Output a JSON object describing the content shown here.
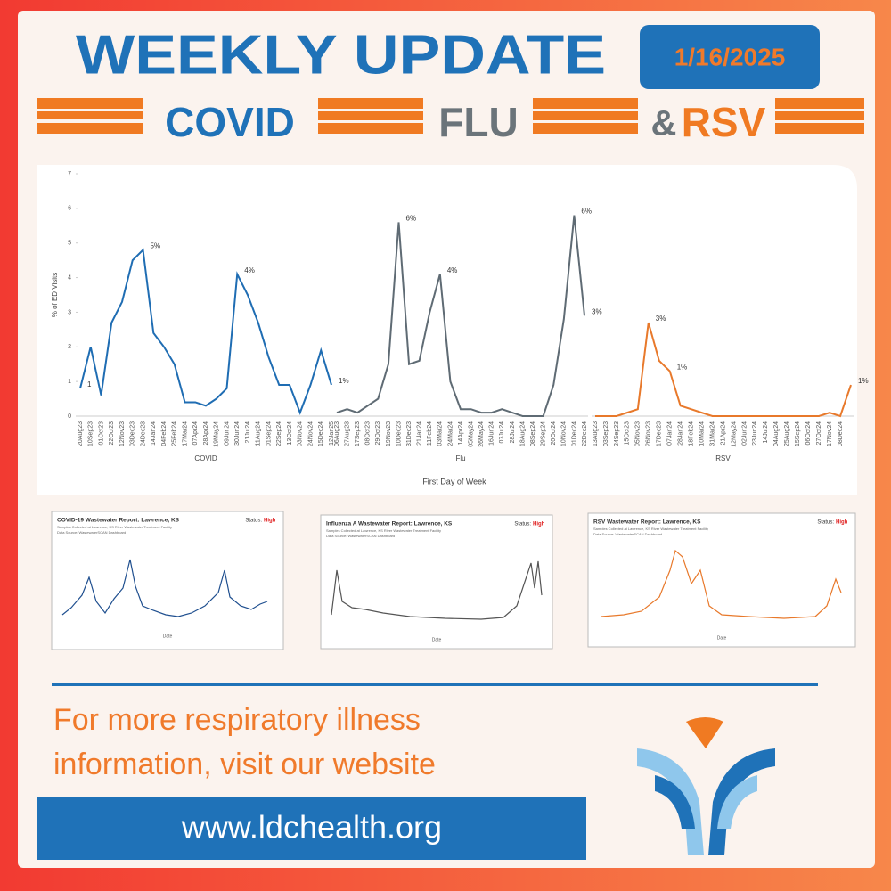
{
  "header": {
    "title": "WEEKLY UPDATE",
    "date": "1/16/2025",
    "topics": [
      "COVID",
      "FLU",
      "&",
      "RSV"
    ]
  },
  "x_axis_title": "First Day of Week",
  "chart_data": [
    {
      "type": "line",
      "title": "COVID",
      "ylabel": "% of ED Visits",
      "ylim": [
        0,
        7
      ],
      "yticks": [
        0,
        1,
        2,
        3,
        4,
        5,
        6,
        7
      ],
      "categories": [
        "20Aug23",
        "10Sep23",
        "01Oct23",
        "22Oct23",
        "12Nov23",
        "03Dec23",
        "24Dec23",
        "14Jan24",
        "04Feb24",
        "25Feb24",
        "17Mar24",
        "07Apr24",
        "28Apr24",
        "19May24",
        "09Jun24",
        "30Jun24",
        "21Jul24",
        "11Aug24",
        "01Sep24",
        "22Sep24",
        "13Oct24",
        "03Nov24",
        "24Nov24",
        "15Dec24",
        "12Jan25"
      ],
      "series": [
        {
          "name": "COVID",
          "color": "#1f6db3",
          "values": [
            0.8,
            2.0,
            0.6,
            2.7,
            3.3,
            4.5,
            4.8,
            2.4,
            2.0,
            1.5,
            0.4,
            0.4,
            0.3,
            0.5,
            0.8,
            4.1,
            3.5,
            2.7,
            1.7,
            0.9,
            0.9,
            0.1,
            0.9,
            1.9,
            0.9
          ],
          "value_labels": [
            "1",
            null,
            null,
            null,
            null,
            null,
            "5%",
            null,
            null,
            null,
            null,
            null,
            null,
            null,
            null,
            "4%",
            null,
            null,
            null,
            null,
            null,
            null,
            null,
            null,
            "1%"
          ]
        }
      ]
    },
    {
      "type": "line",
      "title": "Flu",
      "categories": [
        "06Aug23",
        "27Aug23",
        "17Sep23",
        "08Oct23",
        "29Oct23",
        "19Nov23",
        "10Dec23",
        "31Dec23",
        "21Jan24",
        "11Feb24",
        "03Mar24",
        "24Mar24",
        "14Apr24",
        "05May24",
        "26May24",
        "16Jun24",
        "07Jul24",
        "28Jul24",
        "18Aug24",
        "08Sep24",
        "29Sep24",
        "20Oct24",
        "10Nov24",
        "01Dec24",
        "22Dec24"
      ],
      "series": [
        {
          "name": "Flu",
          "color": "#5f6b74",
          "values": [
            0.1,
            0.2,
            0.1,
            0.3,
            0.5,
            1.5,
            5.6,
            1.5,
            1.6,
            3.0,
            4.1,
            1.0,
            0.2,
            0.2,
            0.1,
            0.1,
            0.2,
            0.1,
            0,
            0,
            0,
            0.9,
            2.8,
            5.8,
            2.9
          ],
          "value_labels": [
            null,
            null,
            null,
            null,
            null,
            null,
            "6%",
            null,
            null,
            null,
            "4%",
            null,
            null,
            null,
            null,
            null,
            null,
            null,
            null,
            null,
            null,
            null,
            null,
            "6%",
            "3%"
          ]
        }
      ]
    },
    {
      "type": "line",
      "title": "RSV",
      "categories": [
        "13Aug23",
        "03Sep23",
        "24Sep23",
        "15Oct23",
        "05Nov23",
        "26Nov23",
        "17Dec23",
        "07Jan24",
        "28Jan24",
        "18Feb24",
        "10Mar24",
        "31Mar24",
        "21Apr24",
        "12May24",
        "02Jun24",
        "23Jun24",
        "14Jul24",
        "04Aug24",
        "25Aug24",
        "15Sep24",
        "06Oct24",
        "27Oct24",
        "17Nov24",
        "08Dec24",
        null
      ],
      "series": [
        {
          "name": "RSV",
          "color": "#e8792b",
          "values": [
            0,
            0,
            0,
            0.1,
            0.2,
            2.7,
            1.6,
            1.3,
            0.3,
            0.2,
            0.1,
            0,
            0,
            0,
            0,
            0,
            0,
            0,
            0,
            0,
            0,
            0,
            0.1,
            0,
            0.9
          ],
          "value_labels": [
            null,
            null,
            null,
            null,
            null,
            "3%",
            null,
            "1%",
            null,
            null,
            null,
            null,
            null,
            null,
            null,
            null,
            null,
            null,
            null,
            null,
            null,
            null,
            null,
            null,
            "1%"
          ]
        }
      ]
    }
  ],
  "thumbnails": [
    {
      "title": "COVID-19 Wastewater Report: Lawrence, KS",
      "status_label": "Status:",
      "status": "High",
      "lines": [
        "Samples Collected at Lawrence, KS River Wastewater Treatment Facility",
        "Data Source: WastewaterSCAN Dashboard"
      ],
      "x_label": "Date"
    },
    {
      "title": "Influenza A Wastewater Report: Lawrence, KS",
      "status_label": "Status:",
      "status": "High",
      "lines": [
        "Samples Collected at Lawrence, KS River Wastewater Treatment Facility",
        "Data Source: WastewaterSCAN Dashboard"
      ],
      "x_label": "Date"
    },
    {
      "title": "RSV Wastewater Report: Lawrence, KS",
      "status_label": "Status:",
      "status": "High",
      "lines": [
        "Samples Collected at Lawrence, KS River Wastewater Treatment Facility",
        "Data Source: WastewaterSCAN Dashboard"
      ],
      "x_label": "Date"
    }
  ],
  "footer": {
    "cta_lines": [
      "For more respiratory illness",
      "information, visit our website"
    ],
    "url": "www.ldchealth.org"
  }
}
